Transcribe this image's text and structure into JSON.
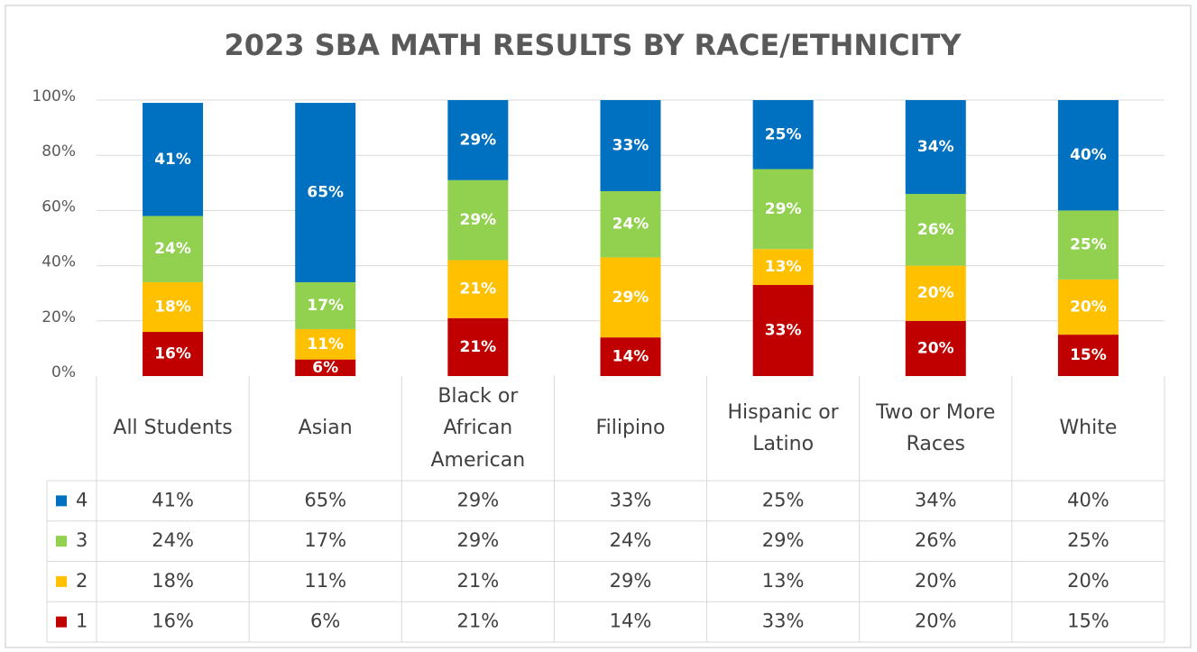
{
  "chart_data": {
    "type": "stacked_bar",
    "title": "2023 SBA MATH RESULTS BY RACE/ETHNICITY",
    "categories": [
      "All Students",
      "Asian",
      "Black or African American",
      "Filipino",
      "Hispanic or Latino",
      "Two or More Races",
      "White"
    ],
    "series": [
      {
        "name": "1",
        "color": "#c00000",
        "values": [
          16,
          6,
          21,
          14,
          33,
          20,
          15
        ],
        "value_labels": [
          "16%",
          "6%",
          "21%",
          "14%",
          "33%",
          "20%",
          "15%"
        ]
      },
      {
        "name": "2",
        "color": "#ffc000",
        "values": [
          18,
          11,
          21,
          29,
          13,
          20,
          20
        ],
        "value_labels": [
          "18%",
          "11%",
          "21%",
          "29%",
          "13%",
          "20%",
          "20%"
        ]
      },
      {
        "name": "3",
        "color": "#92d050",
        "values": [
          24,
          17,
          29,
          24,
          29,
          26,
          25
        ],
        "value_labels": [
          "24%",
          "17%",
          "29%",
          "24%",
          "29%",
          "26%",
          "25%"
        ]
      },
      {
        "name": "4",
        "color": "#0070c0",
        "values": [
          41,
          65,
          29,
          33,
          25,
          34,
          40
        ],
        "value_labels": [
          "41%",
          "65%",
          "29%",
          "33%",
          "25%",
          "34%",
          "40%"
        ]
      }
    ],
    "ylim": [
      0,
      100
    ],
    "yticks": [
      {
        "value": 0,
        "label": "0%"
      },
      {
        "value": 20,
        "label": "20%"
      },
      {
        "value": 40,
        "label": "40%"
      },
      {
        "value": 60,
        "label": "60%"
      },
      {
        "value": 80,
        "label": "80%"
      },
      {
        "value": 100,
        "label": "100%"
      }
    ],
    "grid": true,
    "data_table": true
  }
}
